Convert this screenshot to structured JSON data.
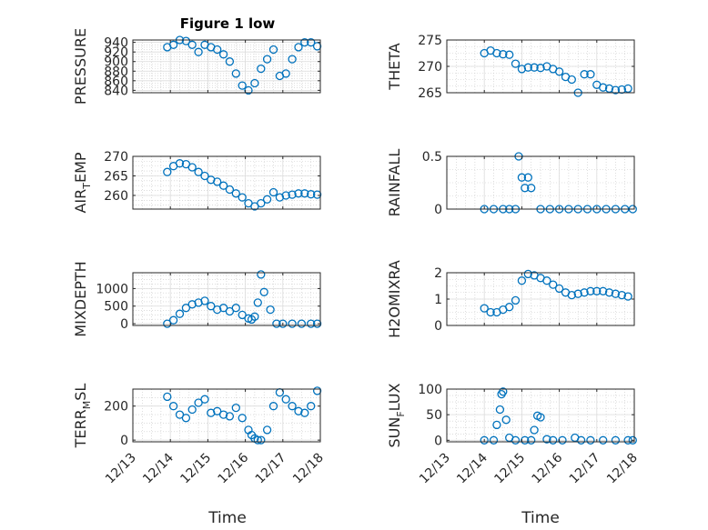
{
  "figure": {
    "title": "Figure 1 low",
    "xlabel": "Time",
    "marker_color": "#0072BD"
  },
  "chart_data": [
    {
      "type": "scatter",
      "id": "pressure",
      "ylabel": "PRESSURE",
      "ylabel_sub": "",
      "ylim": [
        835,
        945
      ],
      "yticks": [
        840,
        860,
        880,
        900,
        920,
        940
      ],
      "xlim": [
        "12/13",
        "12/18"
      ],
      "xticks": [
        "12/13",
        "12/14",
        "12/15",
        "12/16",
        "12/17",
        "12/18"
      ],
      "show_xticks": false,
      "x": [
        "12/13 22:00",
        "12/14 02:00",
        "12/14 06:00",
        "12/14 10:00",
        "12/14 14:00",
        "12/14 18:00",
        "12/14 22:00",
        "12/15 02:00",
        "12/15 06:00",
        "12/15 10:00",
        "12/15 14:00",
        "12/15 18:00",
        "12/15 22:00",
        "12/16 02:00",
        "12/16 06:00",
        "12/16 10:00",
        "12/16 14:00",
        "12/16 18:00",
        "12/16 22:00",
        "12/17 02:00",
        "12/17 06:00",
        "12/17 10:00",
        "12/17 14:00",
        "12/17 18:00",
        "12/17 22:00"
      ],
      "y": [
        930,
        935,
        945,
        943,
        935,
        920,
        935,
        930,
        925,
        915,
        900,
        875,
        850,
        840,
        855,
        885,
        905,
        925,
        870,
        875,
        905,
        930,
        940,
        940,
        932
      ]
    },
    {
      "type": "scatter",
      "id": "theta",
      "ylabel": "THETA",
      "ylabel_sub": "",
      "ylim": [
        265,
        275
      ],
      "yticks": [
        265,
        270,
        275
      ],
      "xlim": [
        "12/13",
        "12/18"
      ],
      "xticks": [
        "12/13",
        "12/14",
        "12/15",
        "12/16",
        "12/17",
        "12/18"
      ],
      "show_xticks": false,
      "x": [
        "12/14 00:00",
        "12/14 04:00",
        "12/14 08:00",
        "12/14 12:00",
        "12/14 16:00",
        "12/14 20:00",
        "12/15 00:00",
        "12/15 04:00",
        "12/15 08:00",
        "12/15 12:00",
        "12/15 16:00",
        "12/15 20:00",
        "12/16 00:00",
        "12/16 04:00",
        "12/16 08:00",
        "12/16 12:00",
        "12/16 16:00",
        "12/16 20:00",
        "12/17 00:00",
        "12/17 04:00",
        "12/17 08:00",
        "12/17 12:00",
        "12/17 16:00",
        "12/17 20:00"
      ],
      "y": [
        272.5,
        273,
        272.5,
        272.3,
        272.2,
        270.5,
        269.5,
        269.8,
        269.8,
        269.7,
        270,
        269.5,
        269,
        268,
        267.5,
        265,
        268.5,
        268.5,
        266.5,
        266,
        265.8,
        265.5,
        265.6,
        265.8
      ]
    },
    {
      "type": "scatter",
      "id": "air_temp",
      "ylabel": "AIR",
      "ylabel_sub": "T",
      "ylabel_after": "EMP",
      "ylim": [
        256.5,
        270
      ],
      "yticks": [
        260,
        265,
        270
      ],
      "xlim": [
        "12/13",
        "12/18"
      ],
      "xticks": [
        "12/13",
        "12/14",
        "12/15",
        "12/16",
        "12/17",
        "12/18"
      ],
      "show_xticks": false,
      "x": [
        "12/13 22:00",
        "12/14 02:00",
        "12/14 06:00",
        "12/14 10:00",
        "12/14 14:00",
        "12/14 18:00",
        "12/14 22:00",
        "12/15 02:00",
        "12/15 06:00",
        "12/15 10:00",
        "12/15 14:00",
        "12/15 18:00",
        "12/15 22:00",
        "12/16 02:00",
        "12/16 06:00",
        "12/16 10:00",
        "12/16 14:00",
        "12/16 18:00",
        "12/16 22:00",
        "12/17 02:00",
        "12/17 06:00",
        "12/17 10:00",
        "12/17 14:00",
        "12/17 18:00",
        "12/17 22:00"
      ],
      "y": [
        266,
        267.5,
        268.2,
        268,
        267.2,
        266,
        265,
        264,
        263.5,
        262.5,
        261.5,
        260.5,
        259.5,
        258,
        257.2,
        258,
        259,
        260.8,
        259.5,
        260,
        260.2,
        260.5,
        260.5,
        260.3,
        260.2
      ]
    },
    {
      "type": "scatter",
      "id": "rainfall",
      "ylabel": "RAINFALL",
      "ylabel_sub": "",
      "ylim": [
        0,
        0.5
      ],
      "yticks": [
        0,
        0.5
      ],
      "xlim": [
        "12/13",
        "12/18"
      ],
      "xticks": [
        "12/13",
        "12/14",
        "12/15",
        "12/16",
        "12/17",
        "12/18"
      ],
      "show_xticks": false,
      "x": [
        "12/14 00:00",
        "12/14 06:00",
        "12/14 12:00",
        "12/14 16:00",
        "12/14 20:00",
        "12/14 22:00",
        "12/15 00:00",
        "12/15 02:00",
        "12/15 04:00",
        "12/15 06:00",
        "12/15 12:00",
        "12/15 18:00",
        "12/16 00:00",
        "12/16 06:00",
        "12/16 12:00",
        "12/16 18:00",
        "12/17 00:00",
        "12/17 06:00",
        "12/17 12:00",
        "12/17 18:00",
        "12/17 23:00"
      ],
      "y": [
        0,
        0,
        0,
        0,
        0,
        0.5,
        0.3,
        0.2,
        0.3,
        0.2,
        0,
        0,
        0,
        0,
        0,
        0,
        0,
        0,
        0,
        0,
        0
      ]
    },
    {
      "type": "scatter",
      "id": "mixdepth",
      "ylabel": "MIXDEPTH",
      "ylabel_sub": "",
      "ylim": [
        -50,
        1450
      ],
      "yticks": [
        0,
        500,
        1000
      ],
      "xlim": [
        "12/13",
        "12/18"
      ],
      "xticks": [
        "12/13",
        "12/14",
        "12/15",
        "12/16",
        "12/17",
        "12/18"
      ],
      "show_xticks": false,
      "x": [
        "12/13 22:00",
        "12/14 02:00",
        "12/14 06:00",
        "12/14 10:00",
        "12/14 14:00",
        "12/14 18:00",
        "12/14 22:00",
        "12/15 02:00",
        "12/15 06:00",
        "12/15 10:00",
        "12/15 14:00",
        "12/15 18:00",
        "12/15 22:00",
        "12/16 02:00",
        "12/16 04:00",
        "12/16 06:00",
        "12/16 08:00",
        "12/16 10:00",
        "12/16 12:00",
        "12/16 16:00",
        "12/16 20:00",
        "12/17 00:00",
        "12/17 06:00",
        "12/17 12:00",
        "12/17 18:00",
        "12/17 22:00"
      ],
      "y": [
        0,
        100,
        280,
        450,
        550,
        600,
        650,
        500,
        400,
        450,
        350,
        450,
        250,
        150,
        120,
        200,
        600,
        1400,
        900,
        400,
        0,
        0,
        0,
        0,
        0,
        0
      ]
    },
    {
      "type": "scatter",
      "id": "h2omixra",
      "ylabel": "H2OMIXRA",
      "ylabel_sub": "",
      "ylim": [
        0,
        2
      ],
      "yticks": [
        0,
        1,
        2
      ],
      "xlim": [
        "12/13",
        "12/18"
      ],
      "xticks": [
        "12/13",
        "12/14",
        "12/15",
        "12/16",
        "12/17",
        "12/18"
      ],
      "show_xticks": false,
      "x": [
        "12/14 00:00",
        "12/14 04:00",
        "12/14 08:00",
        "12/14 12:00",
        "12/14 16:00",
        "12/14 20:00",
        "12/15 00:00",
        "12/15 04:00",
        "12/15 08:00",
        "12/15 12:00",
        "12/15 16:00",
        "12/15 20:00",
        "12/16 00:00",
        "12/16 04:00",
        "12/16 08:00",
        "12/16 12:00",
        "12/16 16:00",
        "12/16 20:00",
        "12/17 00:00",
        "12/17 04:00",
        "12/17 08:00",
        "12/17 12:00",
        "12/17 16:00",
        "12/17 20:00"
      ],
      "y": [
        0.65,
        0.5,
        0.5,
        0.6,
        0.7,
        0.95,
        1.7,
        1.95,
        1.9,
        1.8,
        1.7,
        1.55,
        1.4,
        1.25,
        1.15,
        1.2,
        1.25,
        1.3,
        1.3,
        1.3,
        1.25,
        1.2,
        1.15,
        1.1
      ]
    },
    {
      "type": "scatter",
      "id": "terr_msl",
      "ylabel": "TERR",
      "ylabel_sub": "M",
      "ylabel_after": "SL",
      "ylim": [
        -10,
        300
      ],
      "yticks": [
        0,
        200
      ],
      "xlim": [
        "12/13",
        "12/18"
      ],
      "xticks": [
        "12/13",
        "12/14",
        "12/15",
        "12/16",
        "12/17",
        "12/18"
      ],
      "show_xticks": true,
      "x": [
        "12/13 22:00",
        "12/14 02:00",
        "12/14 06:00",
        "12/14 10:00",
        "12/14 14:00",
        "12/14 18:00",
        "12/14 22:00",
        "12/15 02:00",
        "12/15 06:00",
        "12/15 10:00",
        "12/15 14:00",
        "12/15 18:00",
        "12/15 22:00",
        "12/16 02:00",
        "12/16 04:00",
        "12/16 06:00",
        "12/16 08:00",
        "12/16 10:00",
        "12/16 14:00",
        "12/16 18:00",
        "12/16 22:00",
        "12/17 02:00",
        "12/17 06:00",
        "12/17 10:00",
        "12/17 14:00",
        "12/17 18:00",
        "12/17 22:00"
      ],
      "y": [
        255,
        200,
        150,
        130,
        180,
        220,
        240,
        160,
        170,
        150,
        140,
        190,
        130,
        60,
        30,
        10,
        0,
        0,
        60,
        200,
        280,
        240,
        200,
        170,
        160,
        200,
        290
      ]
    },
    {
      "type": "scatter",
      "id": "sun_flux",
      "ylabel": "SUN",
      "ylabel_sub": "F",
      "ylabel_after": "LUX",
      "ylim": [
        -3,
        100
      ],
      "yticks": [
        0,
        50,
        100
      ],
      "xlim": [
        "12/13",
        "12/18"
      ],
      "xticks": [
        "12/13",
        "12/14",
        "12/15",
        "12/16",
        "12/17",
        "12/18"
      ],
      "show_xticks": true,
      "x": [
        "12/14 00:00",
        "12/14 06:00",
        "12/14 08:00",
        "12/14 10:00",
        "12/14 11:00",
        "12/14 12:00",
        "12/14 14:00",
        "12/14 16:00",
        "12/14 20:00",
        "12/15 02:00",
        "12/15 06:00",
        "12/15 08:00",
        "12/15 10:00",
        "12/15 12:00",
        "12/15 16:00",
        "12/15 20:00",
        "12/16 02:00",
        "12/16 10:00",
        "12/16 14:00",
        "12/16 20:00",
        "12/17 04:00",
        "12/17 12:00",
        "12/17 20:00",
        "12/17 23:00"
      ],
      "y": [
        0,
        0,
        30,
        60,
        90,
        95,
        40,
        5,
        0,
        0,
        0,
        20,
        48,
        45,
        2,
        0,
        0,
        5,
        0,
        0,
        0,
        0,
        0,
        0
      ]
    }
  ]
}
